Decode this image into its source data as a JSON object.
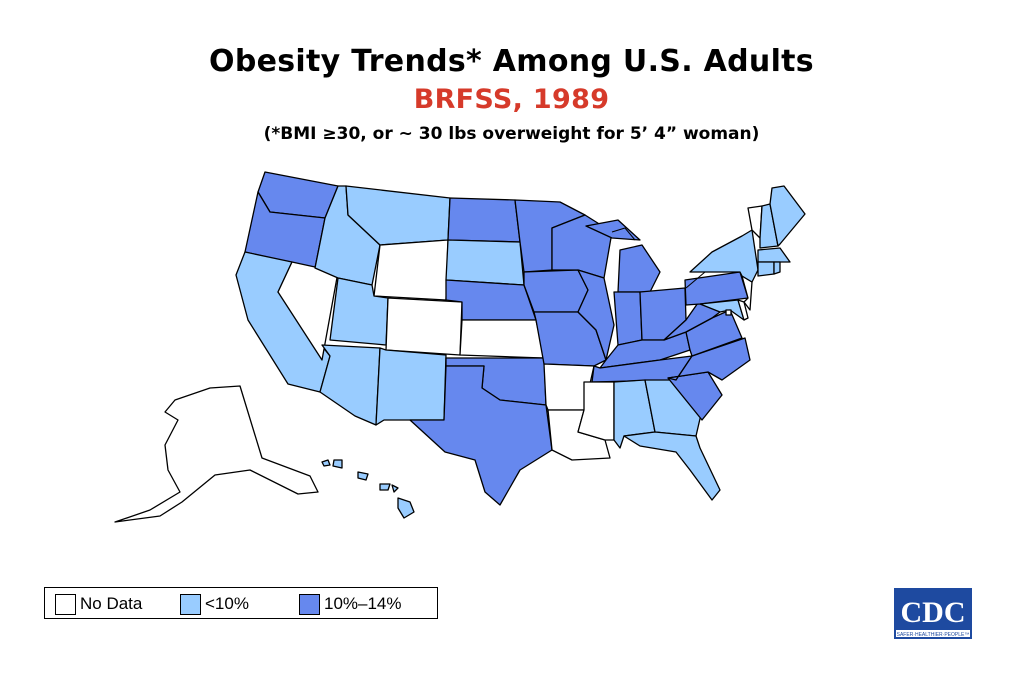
{
  "title": "Obesity Trends* Among U.S. Adults",
  "subtitle": "BRFSS, 1989",
  "note": "(*BMI ≥30, or ~ 30 lbs overweight for 5’ 4” woman)",
  "colors": {
    "no_data": "#ffffff",
    "lt10": "#99ccff",
    "p10_14": "#6688ee",
    "subtitle": "#d63a2a",
    "border": "#000000",
    "logo_bg": "#1e4aa0"
  },
  "legend": [
    {
      "label": "No Data",
      "class": "no_data"
    },
    {
      "label": "<10%",
      "class": "lt10"
    },
    {
      "label": "10%–14%",
      "class": "p10_14"
    }
  ],
  "states": [
    {
      "name": "WA",
      "class": "p10_14"
    },
    {
      "name": "OR",
      "class": "p10_14"
    },
    {
      "name": "CA",
      "class": "lt10"
    },
    {
      "name": "NV",
      "class": "no_data"
    },
    {
      "name": "ID",
      "class": "lt10"
    },
    {
      "name": "MT",
      "class": "lt10"
    },
    {
      "name": "WY",
      "class": "no_data"
    },
    {
      "name": "UT",
      "class": "lt10"
    },
    {
      "name": "AZ",
      "class": "lt10"
    },
    {
      "name": "CO",
      "class": "no_data"
    },
    {
      "name": "NM",
      "class": "lt10"
    },
    {
      "name": "ND",
      "class": "p10_14"
    },
    {
      "name": "SD",
      "class": "lt10"
    },
    {
      "name": "NE",
      "class": "p10_14"
    },
    {
      "name": "KS",
      "class": "no_data"
    },
    {
      "name": "OK",
      "class": "p10_14"
    },
    {
      "name": "TX",
      "class": "p10_14"
    },
    {
      "name": "MN",
      "class": "p10_14"
    },
    {
      "name": "IA",
      "class": "p10_14"
    },
    {
      "name": "MO",
      "class": "p10_14"
    },
    {
      "name": "AR",
      "class": "no_data"
    },
    {
      "name": "LA",
      "class": "no_data"
    },
    {
      "name": "WI",
      "class": "p10_14"
    },
    {
      "name": "IL",
      "class": "p10_14"
    },
    {
      "name": "MI",
      "class": "p10_14"
    },
    {
      "name": "IN",
      "class": "p10_14"
    },
    {
      "name": "OH",
      "class": "p10_14"
    },
    {
      "name": "KY",
      "class": "p10_14"
    },
    {
      "name": "TN",
      "class": "p10_14"
    },
    {
      "name": "MS",
      "class": "no_data"
    },
    {
      "name": "AL",
      "class": "lt10"
    },
    {
      "name": "GA",
      "class": "lt10"
    },
    {
      "name": "FL",
      "class": "lt10"
    },
    {
      "name": "SC",
      "class": "p10_14"
    },
    {
      "name": "NC",
      "class": "p10_14"
    },
    {
      "name": "VA",
      "class": "p10_14"
    },
    {
      "name": "WV",
      "class": "p10_14"
    },
    {
      "name": "PA",
      "class": "p10_14"
    },
    {
      "name": "NY",
      "class": "lt10"
    },
    {
      "name": "VT",
      "class": "no_data"
    },
    {
      "name": "NH",
      "class": "lt10"
    },
    {
      "name": "ME",
      "class": "lt10"
    },
    {
      "name": "MA",
      "class": "lt10"
    },
    {
      "name": "CT",
      "class": "lt10"
    },
    {
      "name": "RI",
      "class": "lt10"
    },
    {
      "name": "NJ",
      "class": "no_data"
    },
    {
      "name": "DE",
      "class": "no_data"
    },
    {
      "name": "MD",
      "class": "lt10"
    },
    {
      "name": "DC",
      "class": "no_data"
    },
    {
      "name": "AK",
      "class": "no_data"
    },
    {
      "name": "HI",
      "class": "lt10"
    }
  ],
  "logo": {
    "text": "CDC",
    "tagline": "SAFER·HEALTHIER·PEOPLE™"
  }
}
